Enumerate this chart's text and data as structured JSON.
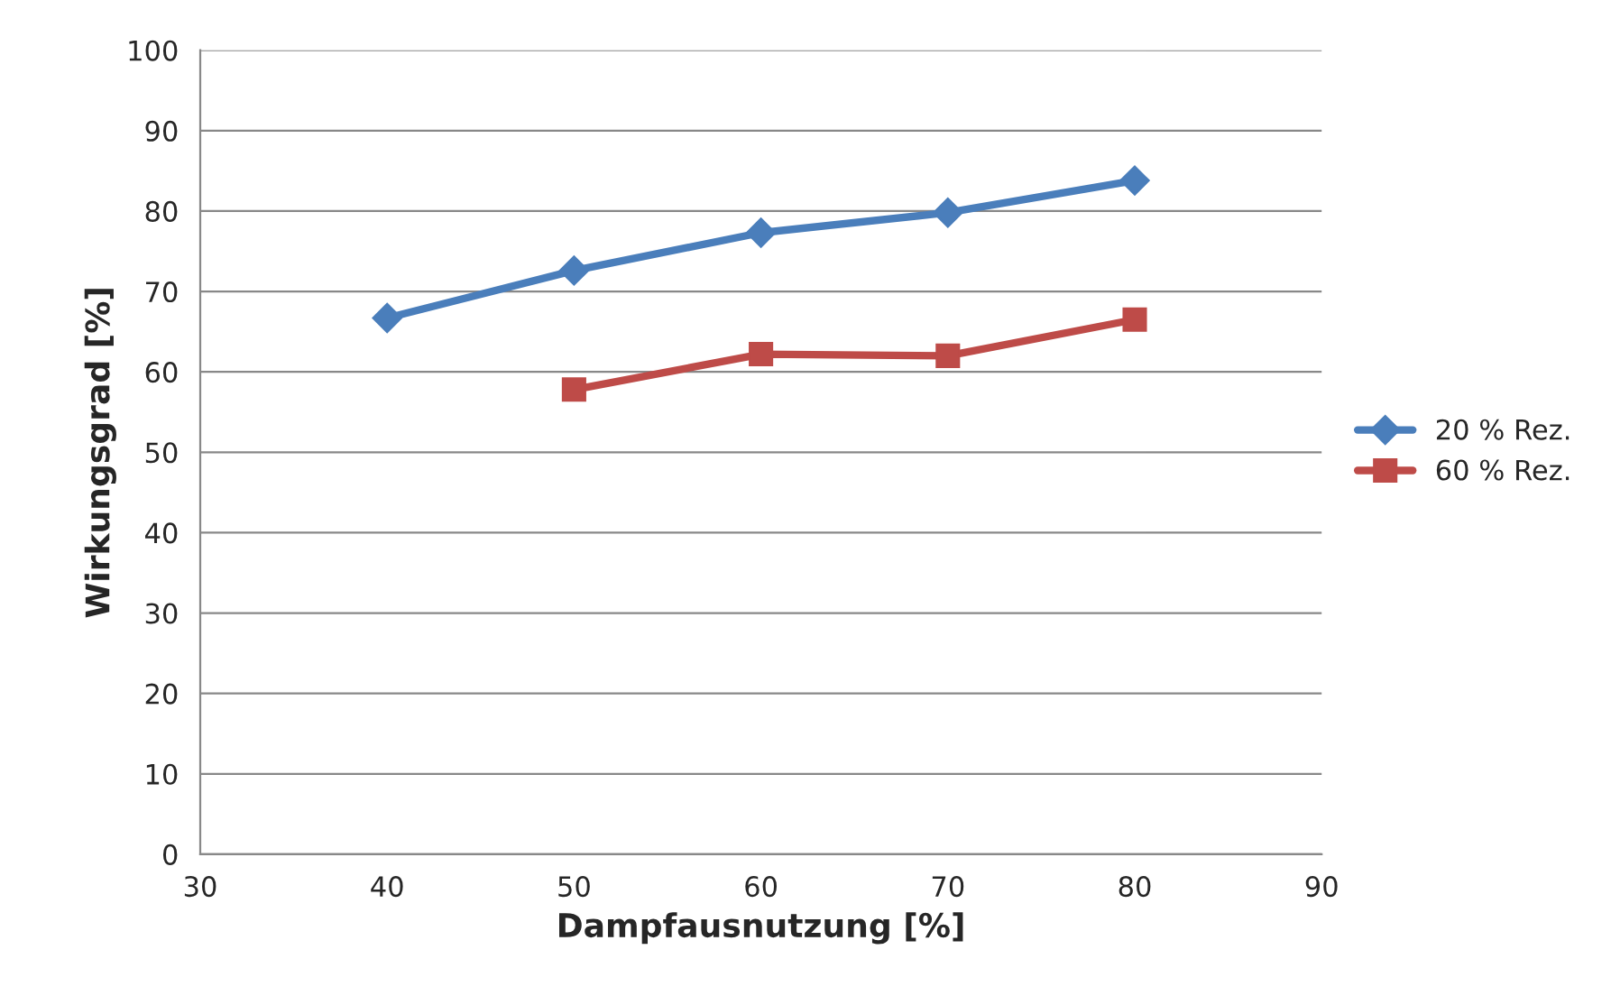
{
  "chart_data": {
    "type": "line",
    "xlabel": "Dampfausnutzung [%]",
    "ylabel": "Wirkungsgrad [%]",
    "series": [
      {
        "name": "20 % Rez.",
        "color": "#4a7ebb",
        "x": [
          40,
          50,
          60,
          70,
          80
        ],
        "values": [
          66.7,
          72.6,
          77.3,
          79.8,
          83.8
        ],
        "marker": "diamond"
      },
      {
        "name": "60 % Rez.",
        "color": "#be4b48",
        "x": [
          50,
          60,
          70,
          80
        ],
        "values": [
          57.8,
          62.2,
          62.0,
          66.5
        ],
        "marker": "square"
      }
    ],
    "xlim": [
      30,
      90
    ],
    "xticks": [
      30,
      40,
      50,
      60,
      70,
      80,
      90
    ],
    "ylim": [
      0,
      100
    ],
    "yticks": [
      0,
      10,
      20,
      30,
      40,
      50,
      60,
      70,
      80,
      90,
      100
    ],
    "grid": "y",
    "legend": "right",
    "line_style": "solid"
  }
}
